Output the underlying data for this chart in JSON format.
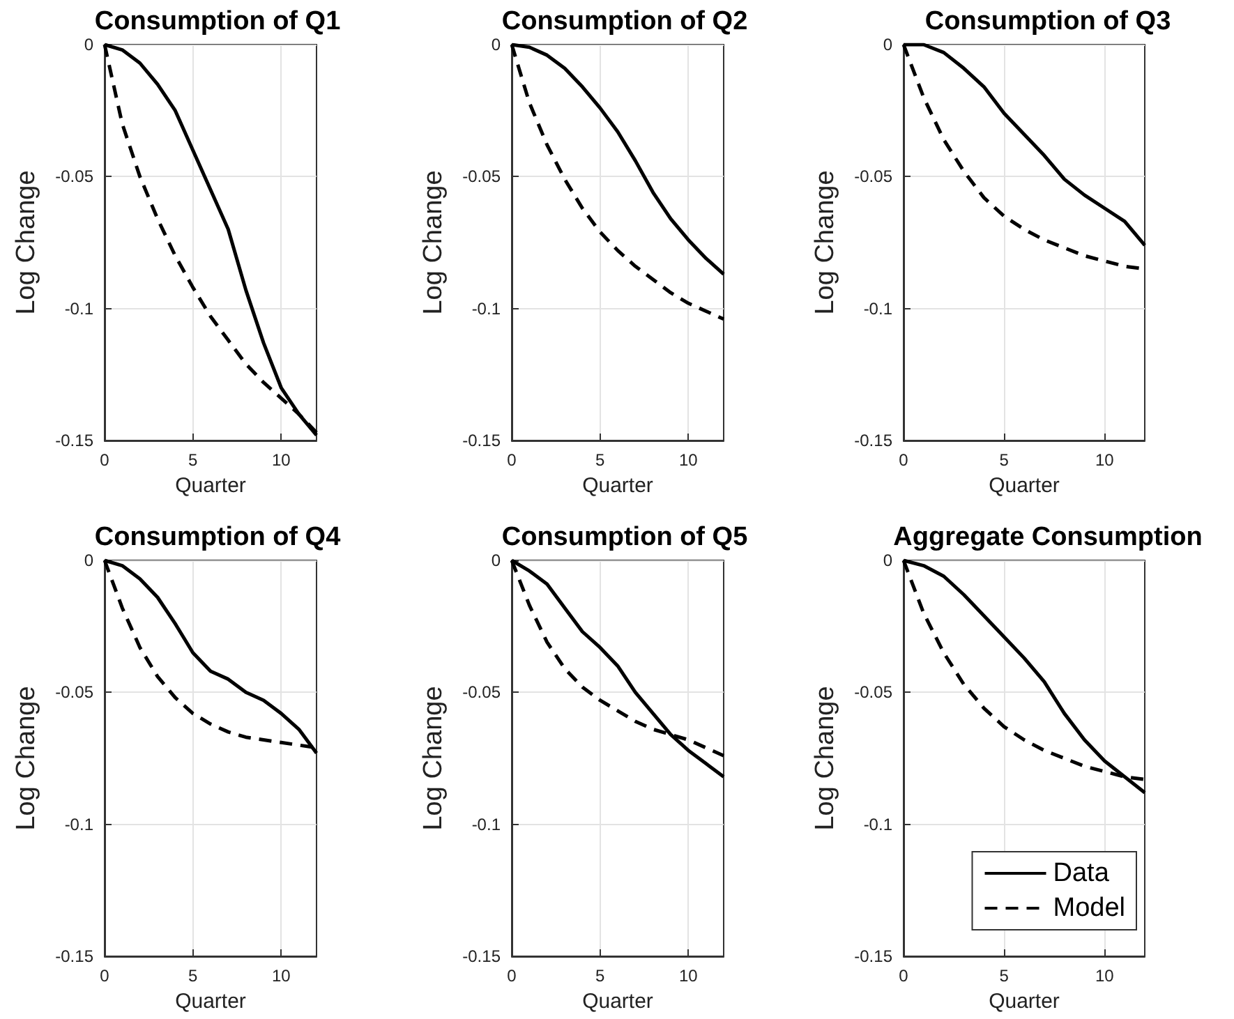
{
  "chart_data": [
    {
      "type": "line",
      "title": "Consumption of Q1",
      "xlabel": "Quarter",
      "ylabel": "Log Change",
      "x": [
        0,
        1,
        2,
        3,
        4,
        5,
        6,
        7,
        8,
        9,
        10,
        11,
        12
      ],
      "xlim": [
        0,
        12
      ],
      "xticks": [
        0,
        5,
        10
      ],
      "ylim": [
        -0.15,
        0
      ],
      "yticks": [
        {
          "value": -0.15,
          "label": "-0.15"
        },
        {
          "value": -0.1,
          "label": "-0.1"
        },
        {
          "value": -0.05,
          "label": "-0.05"
        },
        {
          "value": 0,
          "label": "0"
        }
      ],
      "grid": true,
      "legend": false,
      "series": [
        {
          "color": "#000000",
          "line_style": "solid",
          "values": [
            0,
            -0.002,
            -0.007,
            -0.015,
            -0.025,
            -0.04,
            -0.055,
            -0.07,
            -0.093,
            -0.113,
            -0.13,
            -0.14,
            -0.148
          ]
        },
        {
          "color": "#000000",
          "line_style": "dashed",
          "values": [
            0,
            -0.03,
            -0.05,
            -0.066,
            -0.08,
            -0.092,
            -0.103,
            -0.112,
            -0.121,
            -0.128,
            -0.134,
            -0.14,
            -0.147
          ]
        }
      ]
    },
    {
      "type": "line",
      "title": "Consumption of Q2",
      "xlabel": "Quarter",
      "ylabel": "Log Change",
      "x": [
        0,
        1,
        2,
        3,
        4,
        5,
        6,
        7,
        8,
        9,
        10,
        11,
        12
      ],
      "xlim": [
        0,
        12
      ],
      "xticks": [
        0,
        5,
        10
      ],
      "ylim": [
        -0.15,
        0
      ],
      "yticks": [
        {
          "value": -0.15,
          "label": "-0.15"
        },
        {
          "value": -0.1,
          "label": "-0.1"
        },
        {
          "value": -0.05,
          "label": "-0.05"
        },
        {
          "value": 0,
          "label": "0"
        }
      ],
      "grid": true,
      "legend": false,
      "series": [
        {
          "color": "#000000",
          "line_style": "solid",
          "values": [
            0,
            -0.001,
            -0.004,
            -0.009,
            -0.016,
            -0.024,
            -0.033,
            -0.044,
            -0.056,
            -0.066,
            -0.074,
            -0.081,
            -0.087
          ]
        },
        {
          "color": "#000000",
          "line_style": "dashed",
          "values": [
            0,
            -0.022,
            -0.038,
            -0.051,
            -0.062,
            -0.071,
            -0.078,
            -0.084,
            -0.089,
            -0.094,
            -0.098,
            -0.101,
            -0.104
          ]
        }
      ]
    },
    {
      "type": "line",
      "title": "Consumption of Q3",
      "xlabel": "Quarter",
      "ylabel": "Log Change",
      "x": [
        0,
        1,
        2,
        3,
        4,
        5,
        6,
        7,
        8,
        9,
        10,
        11,
        12
      ],
      "xlim": [
        0,
        12
      ],
      "xticks": [
        0,
        5,
        10
      ],
      "ylim": [
        -0.15,
        0
      ],
      "yticks": [
        {
          "value": -0.15,
          "label": "-0.15"
        },
        {
          "value": -0.1,
          "label": "-0.1"
        },
        {
          "value": -0.05,
          "label": "-0.05"
        },
        {
          "value": 0,
          "label": "0"
        }
      ],
      "grid": true,
      "legend": false,
      "series": [
        {
          "color": "#000000",
          "line_style": "solid",
          "values": [
            0,
            0,
            -0.003,
            -0.009,
            -0.016,
            -0.026,
            -0.034,
            -0.042,
            -0.051,
            -0.057,
            -0.062,
            -0.067,
            -0.076
          ]
        },
        {
          "color": "#000000",
          "line_style": "dashed",
          "values": [
            0,
            -0.02,
            -0.036,
            -0.048,
            -0.058,
            -0.065,
            -0.07,
            -0.074,
            -0.077,
            -0.08,
            -0.082,
            -0.084,
            -0.085
          ]
        }
      ]
    },
    {
      "type": "line",
      "title": "Consumption of Q4",
      "xlabel": "Quarter",
      "ylabel": "Log Change",
      "x": [
        0,
        1,
        2,
        3,
        4,
        5,
        6,
        7,
        8,
        9,
        10,
        11,
        12
      ],
      "xlim": [
        0,
        12
      ],
      "xticks": [
        0,
        5,
        10
      ],
      "ylim": [
        -0.15,
        0
      ],
      "yticks": [
        {
          "value": -0.15,
          "label": "-0.15"
        },
        {
          "value": -0.1,
          "label": "-0.1"
        },
        {
          "value": -0.05,
          "label": "-0.05"
        },
        {
          "value": 0,
          "label": "0"
        }
      ],
      "grid": true,
      "legend": false,
      "series": [
        {
          "color": "#000000",
          "line_style": "solid",
          "values": [
            0,
            -0.002,
            -0.007,
            -0.014,
            -0.024,
            -0.035,
            -0.042,
            -0.045,
            -0.05,
            -0.053,
            -0.058,
            -0.064,
            -0.073
          ]
        },
        {
          "color": "#000000",
          "line_style": "dashed",
          "values": [
            0,
            -0.018,
            -0.033,
            -0.044,
            -0.052,
            -0.058,
            -0.062,
            -0.065,
            -0.067,
            -0.068,
            -0.069,
            -0.07,
            -0.071
          ]
        }
      ]
    },
    {
      "type": "line",
      "title": "Consumption of Q5",
      "xlabel": "Quarter",
      "ylabel": "Log Change",
      "x": [
        0,
        1,
        2,
        3,
        4,
        5,
        6,
        7,
        8,
        9,
        10,
        11,
        12
      ],
      "xlim": [
        0,
        12
      ],
      "xticks": [
        0,
        5,
        10
      ],
      "ylim": [
        -0.15,
        0
      ],
      "yticks": [
        {
          "value": -0.15,
          "label": "-0.15"
        },
        {
          "value": -0.1,
          "label": "-0.1"
        },
        {
          "value": -0.05,
          "label": "-0.05"
        },
        {
          "value": 0,
          "label": "0"
        }
      ],
      "grid": true,
      "legend": false,
      "series": [
        {
          "color": "#000000",
          "line_style": "solid",
          "values": [
            0,
            -0.004,
            -0.009,
            -0.018,
            -0.027,
            -0.033,
            -0.04,
            -0.05,
            -0.058,
            -0.066,
            -0.072,
            -0.077,
            -0.082
          ]
        },
        {
          "color": "#000000",
          "line_style": "dashed",
          "values": [
            0,
            -0.017,
            -0.031,
            -0.041,
            -0.048,
            -0.053,
            -0.057,
            -0.061,
            -0.064,
            -0.066,
            -0.068,
            -0.071,
            -0.074
          ]
        }
      ]
    },
    {
      "type": "line",
      "title": "Aggregate Consumption",
      "xlabel": "Quarter",
      "ylabel": "Log Change",
      "x": [
        0,
        1,
        2,
        3,
        4,
        5,
        6,
        7,
        8,
        9,
        10,
        11,
        12
      ],
      "xlim": [
        0,
        12
      ],
      "xticks": [
        0,
        5,
        10
      ],
      "ylim": [
        -0.15,
        0
      ],
      "yticks": [
        {
          "value": -0.15,
          "label": "-0.15"
        },
        {
          "value": -0.1,
          "label": "-0.1"
        },
        {
          "value": -0.05,
          "label": "-0.05"
        },
        {
          "value": 0,
          "label": "0"
        }
      ],
      "grid": true,
      "legend": "bottom right",
      "series": [
        {
          "name": "Data",
          "color": "#000000",
          "line_style": "solid",
          "values": [
            0,
            -0.002,
            -0.006,
            -0.013,
            -0.021,
            -0.029,
            -0.037,
            -0.046,
            -0.058,
            -0.068,
            -0.076,
            -0.082,
            -0.088
          ]
        },
        {
          "name": "Model",
          "color": "#000000",
          "line_style": "dashed",
          "values": [
            0,
            -0.02,
            -0.035,
            -0.047,
            -0.056,
            -0.063,
            -0.068,
            -0.072,
            -0.075,
            -0.078,
            -0.08,
            -0.082,
            -0.083
          ]
        }
      ]
    }
  ]
}
